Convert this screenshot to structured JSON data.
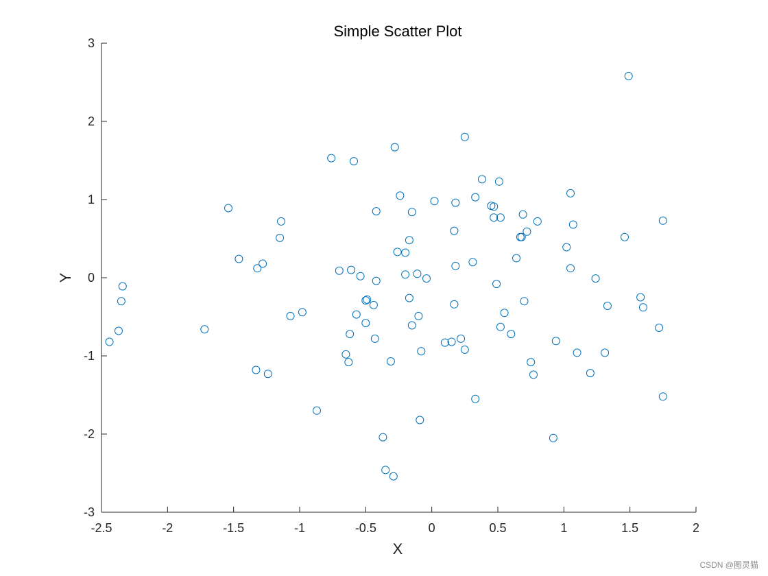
{
  "chart_data": {
    "type": "scatter",
    "title": "Simple Scatter Plot",
    "xlabel": "X",
    "ylabel": "Y",
    "xlim": [
      -2.5,
      2
    ],
    "ylim": [
      -3,
      3
    ],
    "xticks": [
      -2.5,
      -2,
      -1.5,
      -1,
      -0.5,
      0,
      0.5,
      1,
      1.5,
      2
    ],
    "xtick_labels": [
      "-2.5",
      "-2",
      "-1.5",
      "-1",
      "-0.5",
      "0",
      "0.5",
      "1",
      "1.5",
      "2"
    ],
    "yticks": [
      -3,
      -2,
      -1,
      0,
      1,
      2,
      3
    ],
    "ytick_labels": [
      "-3",
      "-2",
      "-1",
      "0",
      "1",
      "2",
      "3"
    ],
    "grid": false,
    "marker": "circle-open",
    "color": "#0072BD",
    "points": [
      [
        1.49,
        2.58
      ],
      [
        0.25,
        1.8
      ],
      [
        -0.28,
        1.67
      ],
      [
        -0.76,
        1.53
      ],
      [
        -0.59,
        1.49
      ],
      [
        0.38,
        1.26
      ],
      [
        0.51,
        1.23
      ],
      [
        -0.24,
        1.05
      ],
      [
        0.33,
        1.03
      ],
      [
        1.05,
        1.08
      ],
      [
        0.02,
        0.98
      ],
      [
        0.18,
        0.96
      ],
      [
        0.45,
        0.92
      ],
      [
        0.47,
        0.91
      ],
      [
        -1.54,
        0.89
      ],
      [
        -0.42,
        0.85
      ],
      [
        -0.15,
        0.84
      ],
      [
        0.69,
        0.81
      ],
      [
        0.47,
        0.77
      ],
      [
        0.52,
        0.77
      ],
      [
        -1.14,
        0.72
      ],
      [
        0.8,
        0.72
      ],
      [
        1.75,
        0.73
      ],
      [
        1.07,
        0.68
      ],
      [
        0.17,
        0.6
      ],
      [
        0.72,
        0.59
      ],
      [
        0.67,
        0.52
      ],
      [
        0.68,
        0.52
      ],
      [
        1.46,
        0.52
      ],
      [
        -1.15,
        0.51
      ],
      [
        -0.17,
        0.48
      ],
      [
        1.02,
        0.39
      ],
      [
        -0.26,
        0.33
      ],
      [
        -0.2,
        0.32
      ],
      [
        0.64,
        0.25
      ],
      [
        -1.46,
        0.24
      ],
      [
        -1.28,
        0.18
      ],
      [
        -1.32,
        0.12
      ],
      [
        0.31,
        0.2
      ],
      [
        0.18,
        0.15
      ],
      [
        1.05,
        0.12
      ],
      [
        -0.7,
        0.09
      ],
      [
        -0.61,
        0.1
      ],
      [
        -0.54,
        0.02
      ],
      [
        -0.2,
        0.04
      ],
      [
        -0.11,
        0.05
      ],
      [
        -0.04,
        -0.01
      ],
      [
        -0.42,
        -0.04
      ],
      [
        1.24,
        -0.01
      ],
      [
        -2.34,
        -0.11
      ],
      [
        0.49,
        -0.08
      ],
      [
        -0.17,
        -0.26
      ],
      [
        -2.35,
        -0.3
      ],
      [
        -0.49,
        -0.28
      ],
      [
        -0.5,
        -0.29
      ],
      [
        -0.44,
        -0.35
      ],
      [
        0.7,
        -0.3
      ],
      [
        0.17,
        -0.34
      ],
      [
        1.33,
        -0.36
      ],
      [
        1.58,
        -0.25
      ],
      [
        1.6,
        -0.38
      ],
      [
        -0.98,
        -0.44
      ],
      [
        -1.07,
        -0.49
      ],
      [
        -0.57,
        -0.47
      ],
      [
        -0.1,
        -0.49
      ],
      [
        0.55,
        -0.45
      ],
      [
        -0.5,
        -0.58
      ],
      [
        -0.15,
        -0.61
      ],
      [
        0.52,
        -0.63
      ],
      [
        -1.72,
        -0.66
      ],
      [
        -2.37,
        -0.68
      ],
      [
        -0.62,
        -0.72
      ],
      [
        -0.43,
        -0.78
      ],
      [
        0.6,
        -0.72
      ],
      [
        1.72,
        -0.64
      ],
      [
        -2.44,
        -0.82
      ],
      [
        0.1,
        -0.83
      ],
      [
        0.15,
        -0.82
      ],
      [
        0.22,
        -0.78
      ],
      [
        0.94,
        -0.81
      ],
      [
        -0.65,
        -0.98
      ],
      [
        -0.63,
        -1.08
      ],
      [
        -0.08,
        -0.94
      ],
      [
        0.25,
        -0.92
      ],
      [
        1.1,
        -0.96
      ],
      [
        1.31,
        -0.96
      ],
      [
        -0.31,
        -1.07
      ],
      [
        0.75,
        -1.08
      ],
      [
        -1.33,
        -1.18
      ],
      [
        -1.24,
        -1.23
      ],
      [
        0.77,
        -1.24
      ],
      [
        1.2,
        -1.22
      ],
      [
        0.33,
        -1.55
      ],
      [
        1.75,
        -1.52
      ],
      [
        -0.87,
        -1.7
      ],
      [
        -0.09,
        -1.82
      ],
      [
        -0.37,
        -2.04
      ],
      [
        0.92,
        -2.05
      ],
      [
        -0.35,
        -2.46
      ],
      [
        -0.29,
        -2.54
      ]
    ]
  },
  "watermark": "CSDN @图灵猫"
}
